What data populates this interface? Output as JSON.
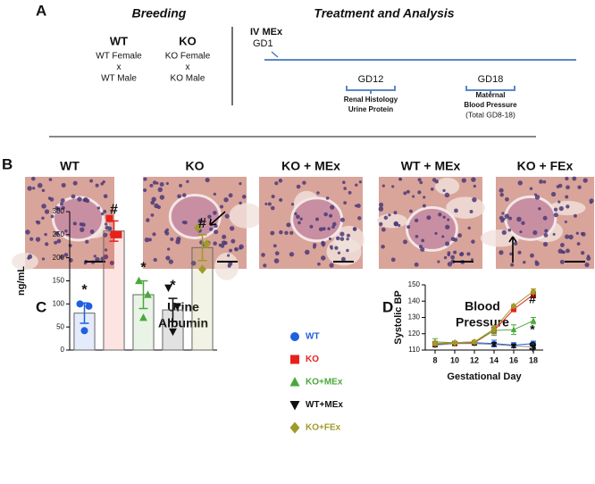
{
  "panel_labels": [
    "A",
    "B",
    "C",
    "D"
  ],
  "breeding": {
    "title": "Breeding",
    "groups": [
      {
        "name": "WT",
        "lines": [
          "WT Female",
          "x",
          "WT Male"
        ]
      },
      {
        "name": "KO",
        "lines": [
          "KO Female",
          "x",
          "KO Male"
        ]
      }
    ]
  },
  "treatment": {
    "title": "Treatment and Analysis",
    "start": {
      "label": "IV MEx",
      "day": "GD1"
    },
    "steps": [
      {
        "day": "GD12",
        "lines": [
          "Renal Histology",
          "Urine Protein"
        ]
      },
      {
        "day": "GD18",
        "lines": [
          "Maternal",
          "Blood Pressure",
          "(Total GD8-18)"
        ]
      }
    ]
  },
  "histology": {
    "labels": [
      "WT",
      "KO",
      "KO + MEx",
      "WT + MEx",
      "KO + FEx"
    ]
  },
  "chart_data": [
    {
      "type": "bar",
      "title": [
        "Urine",
        "Albumin"
      ],
      "ylabel": "ng/mL",
      "categories": [
        null,
        null,
        null,
        null,
        null
      ],
      "values": [
        80,
        258,
        120,
        87,
        222
      ],
      "errors": [
        22,
        22,
        30,
        25,
        28
      ],
      "points": [
        [
          100,
          95,
          42
        ],
        [
          285,
          250,
          250
        ],
        [
          150,
          120,
          70
        ],
        [
          135,
          95,
          40
        ],
        [
          265,
          230,
          175
        ]
      ],
      "colors": [
        "#1f5fe0",
        "#e8211b",
        "#4aa83a",
        "#111111",
        "#a09a2a"
      ],
      "annotations": [
        "*",
        "#",
        "*",
        "*",
        "#"
      ],
      "ylim": [
        0,
        300
      ],
      "yticks": [
        0,
        50,
        100,
        150,
        200,
        250,
        300
      ]
    },
    {
      "type": "line",
      "title": [
        "Blood",
        "Pressure"
      ],
      "xlabel": "Gestational Day",
      "ylabel": "Systolic BP",
      "x": [
        8,
        10,
        12,
        14,
        16,
        18
      ],
      "xlim": [
        7,
        19
      ],
      "xticks": [
        8,
        10,
        12,
        14,
        16,
        18
      ],
      "ylim": [
        110,
        150
      ],
      "yticks": [
        110,
        120,
        130,
        140,
        150
      ],
      "series": [
        {
          "name": "WT",
          "color": "#1f5fe0",
          "marker": "circle",
          "values": [
            113.5,
            114,
            114.5,
            114,
            113,
            114
          ],
          "errors": [
            1,
            1,
            1,
            2,
            1.5,
            1.5
          ]
        },
        {
          "name": "KO",
          "color": "#e8211b",
          "marker": "square",
          "values": [
            114,
            114,
            114.5,
            122,
            135,
            144
          ],
          "errors": [
            1,
            1,
            1,
            2,
            1.5,
            2
          ]
        },
        {
          "name": "KO+MEx",
          "color": "#4aa83a",
          "marker": "triangle",
          "values": [
            115,
            114.5,
            115,
            122,
            122.5,
            128
          ],
          "errors": [
            2,
            1,
            1,
            3,
            3,
            2
          ]
        },
        {
          "name": "WT+MEx",
          "color": "#111111",
          "marker": "down",
          "values": [
            113,
            114,
            114,
            113.5,
            112.5,
            112
          ],
          "errors": [
            1,
            1,
            1,
            1,
            1,
            1
          ]
        },
        {
          "name": "KO+FEx",
          "color": "#a09a2a",
          "marker": "diamond",
          "values": [
            114,
            114.5,
            115,
            123,
            137,
            146
          ],
          "errors": [
            1,
            1,
            1,
            2,
            1,
            1.5
          ]
        }
      ],
      "annotations": [
        "#",
        "*",
        "$"
      ]
    }
  ]
}
